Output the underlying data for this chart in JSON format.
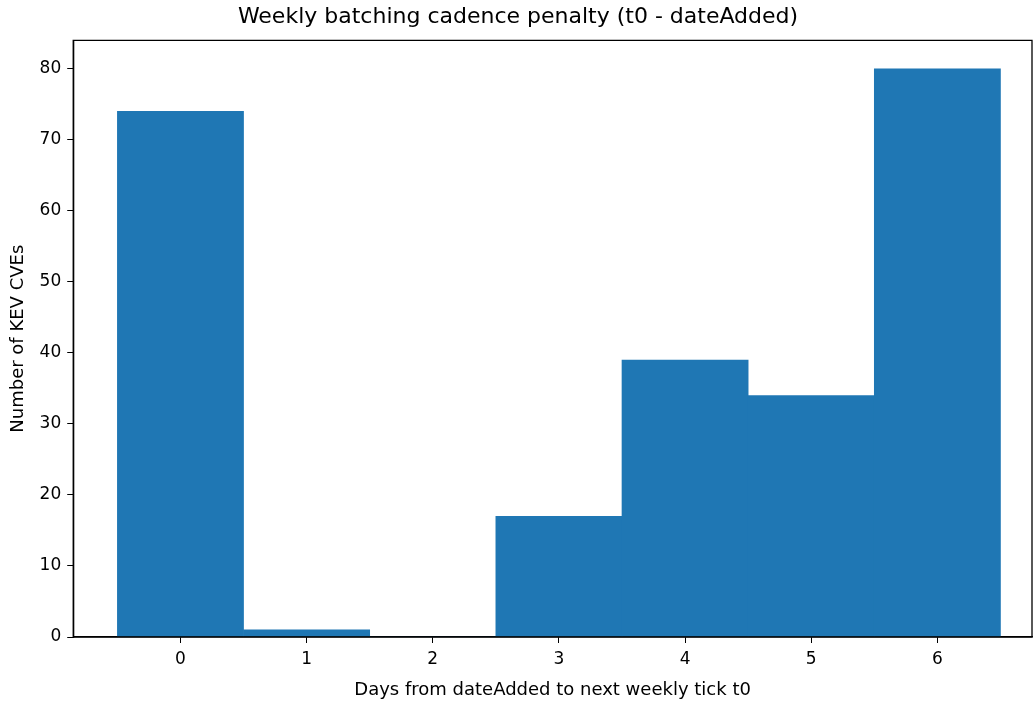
{
  "chart_data": {
    "type": "histogram",
    "title": "Weekly batching cadence penalty (t0 - dateAdded)",
    "xlabel": "Days from dateAdded to next weekly tick t0",
    "ylabel": "Number of KEV CVEs",
    "bins": [
      -0.5,
      0.5,
      1.5,
      2.5,
      3.5,
      4.5,
      5.5,
      6.5
    ],
    "values": [
      74,
      1,
      0,
      17,
      39,
      34,
      80
    ],
    "color": "#1f77b4",
    "xlim": [
      -0.85,
      6.75
    ],
    "xticks": [
      0,
      1,
      2,
      3,
      4,
      5,
      6
    ],
    "ylim": [
      0,
      84
    ],
    "yticks": [
      0,
      10,
      20,
      30,
      40,
      50,
      60,
      70,
      80
    ],
    "grid": false,
    "legend": false
  }
}
